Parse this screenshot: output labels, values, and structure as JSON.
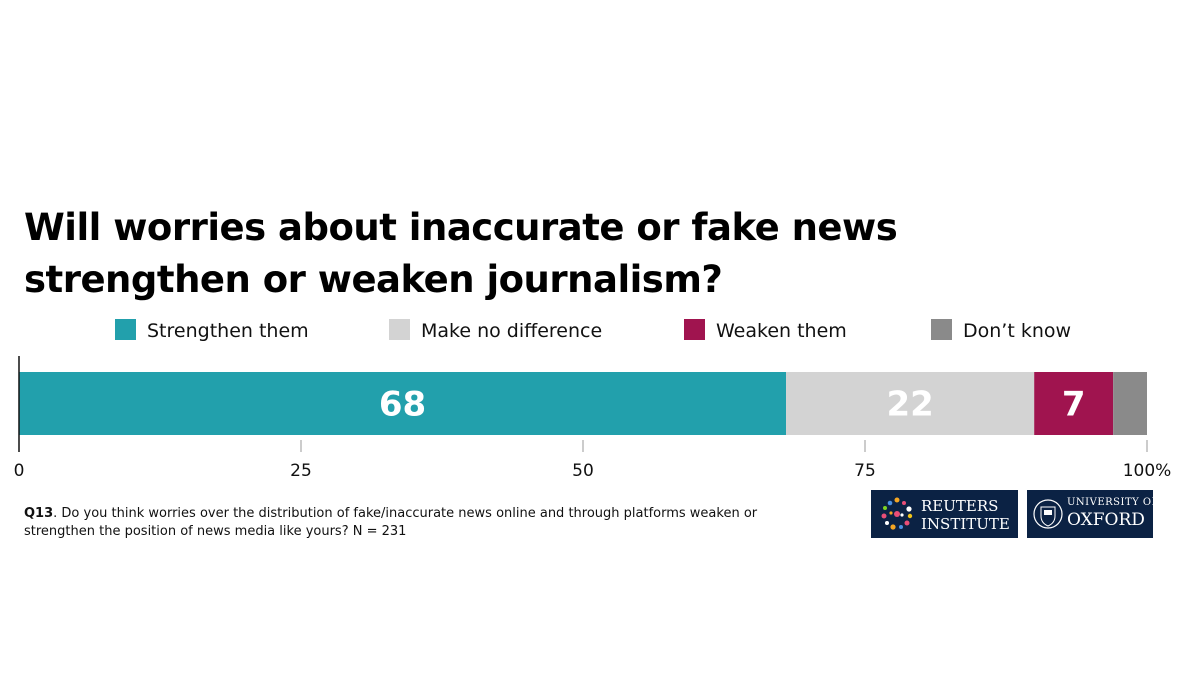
{
  "title": {
    "line1": "Will worries about inaccurate or fake news",
    "line2": "strengthen or weaken journalism?"
  },
  "chart_data": {
    "type": "bar",
    "orientation": "horizontal-stacked",
    "categories": [
      "Will worries about inaccurate or fake news strengthen or weaken journalism?"
    ],
    "series": [
      {
        "name": "Strengthen them",
        "values": [
          68
        ],
        "color": "#22a0ac",
        "label": "68"
      },
      {
        "name": "Make no difference",
        "values": [
          22
        ],
        "color": "#d3d3d3",
        "label": "22"
      },
      {
        "name": "Weaken them",
        "values": [
          7
        ],
        "color": "#a0144f",
        "label": "7"
      },
      {
        "name": "Don’t know",
        "values": [
          3
        ],
        "color": "#8a8a8a",
        "label": ""
      }
    ],
    "xlim": [
      0,
      100
    ],
    "ticks": [
      "0",
      "25",
      "50",
      "75",
      "100%"
    ],
    "tick_values": [
      0,
      25,
      50,
      75,
      100
    ],
    "legend_position": "top",
    "grid": false
  },
  "note": {
    "label": "Q13",
    "text": ". Do you think worries over the distribution of fake/inaccurate news online and through platforms weaken or strengthen the position of news media like yours? N = 231"
  },
  "logos": {
    "reuters": {
      "line1": "REUTERS",
      "line2": "INSTITUTE"
    },
    "oxford": {
      "line1": "UNIVERSITY OF",
      "line2": "OXFORD"
    }
  },
  "colors": {
    "logo_bg": "#0b2244"
  }
}
